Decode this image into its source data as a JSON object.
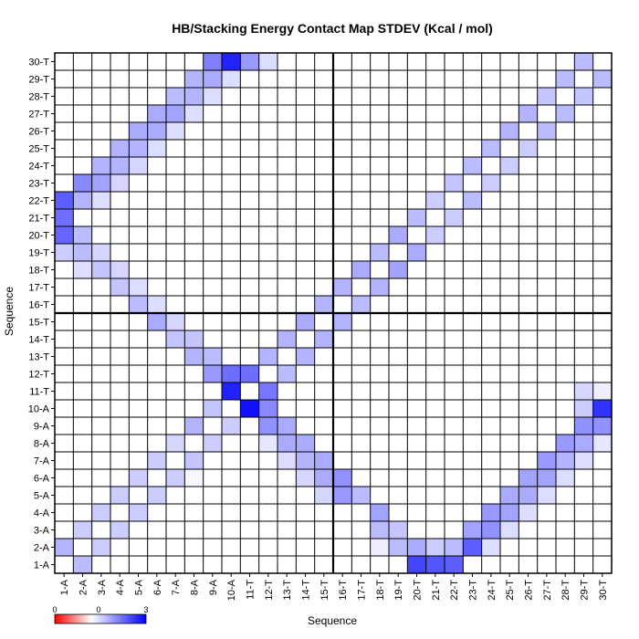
{
  "chart_data": {
    "type": "heatmap",
    "title": "HB/Stacking Energy Contact Map STDEV (Kcal / mol)",
    "xlabel": "Sequence",
    "ylabel": "Sequence",
    "labels": [
      "1-A",
      "2-A",
      "3-A",
      "4-A",
      "5-A",
      "6-A",
      "7-A",
      "8-A",
      "9-A",
      "10-A",
      "11-T",
      "12-T",
      "13-T",
      "14-T",
      "15-T",
      "16-T",
      "17-T",
      "18-T",
      "19-T",
      "20-T",
      "21-T",
      "22-T",
      "23-T",
      "24-T",
      "25-T",
      "26-T",
      "27-T",
      "28-T",
      "29-T",
      "30-T"
    ],
    "strand_break_after": 15,
    "colorbar": {
      "ticks": [
        "0",
        "0",
        "3"
      ],
      "low_color": "#ff0000",
      "mid_color": "#ffffff",
      "high_color": "#0000ff"
    },
    "scale_max": 3,
    "matrix": [
      [
        0,
        0.8,
        0,
        0,
        0,
        0,
        0,
        0,
        0,
        0,
        0,
        0,
        0,
        0,
        0,
        0,
        0,
        0,
        0,
        2.2,
        2.0,
        1.9,
        0,
        0,
        0,
        0,
        0,
        0,
        0,
        0
      ],
      [
        0.9,
        0,
        0.6,
        0,
        0,
        0,
        0,
        0,
        0,
        0,
        0,
        0,
        0,
        0,
        0,
        0,
        0,
        0.2,
        0.8,
        1.0,
        0.6,
        0.8,
        1.9,
        0.4,
        0,
        0,
        0,
        0,
        0,
        0
      ],
      [
        0,
        0.6,
        0,
        0.6,
        0,
        0,
        0,
        0,
        0,
        0,
        0,
        0,
        0,
        0,
        0,
        0,
        0,
        0.8,
        0.7,
        0,
        0,
        0,
        1.1,
        1.3,
        0.4,
        0,
        0,
        0,
        0,
        0
      ],
      [
        0,
        0,
        0.6,
        0,
        0.6,
        0,
        0,
        0,
        0,
        0,
        0,
        0,
        0,
        0,
        0,
        0,
        0,
        1.1,
        0,
        0,
        0,
        0,
        0,
        1.2,
        1.1,
        0.4,
        0,
        0,
        0,
        0
      ],
      [
        0,
        0,
        0,
        0.6,
        0,
        0.6,
        0,
        0,
        0,
        0,
        0,
        0,
        0,
        0,
        0.5,
        1.2,
        0.8,
        0,
        0,
        0,
        0,
        0,
        0,
        0,
        1.0,
        1.0,
        0.4,
        0,
        0,
        0
      ],
      [
        0,
        0,
        0,
        0,
        0.6,
        0,
        0.6,
        0.1,
        0,
        0,
        0,
        0,
        0,
        0.5,
        1.0,
        1.3,
        0,
        0,
        0,
        0,
        0,
        0,
        0,
        0,
        0,
        1.1,
        1.1,
        0.4,
        0,
        0
      ],
      [
        0,
        0,
        0,
        0,
        0,
        0.6,
        0,
        0.7,
        0,
        0,
        0,
        0,
        0.4,
        0.9,
        1.0,
        0,
        0,
        0,
        0,
        0,
        0,
        0,
        0,
        0,
        0,
        0,
        1.2,
        0.9,
        0.4,
        0
      ],
      [
        0,
        0,
        0,
        0,
        0,
        0,
        0.5,
        0,
        0.6,
        0,
        0,
        0.3,
        1.0,
        1.0,
        0,
        0,
        0,
        0,
        0,
        0,
        0,
        0,
        0,
        0,
        0,
        0,
        0,
        1.2,
        1.0,
        0.3
      ],
      [
        0,
        0,
        0,
        0,
        0,
        0,
        0,
        0.9,
        0,
        0.6,
        0,
        1.3,
        1.0,
        0,
        0,
        0,
        0,
        0,
        0,
        0,
        0,
        0,
        0,
        0,
        0,
        0,
        0,
        0,
        1.3,
        1.3
      ],
      [
        0,
        0,
        0,
        0,
        0,
        0,
        0,
        0,
        0.7,
        0,
        2.8,
        1.4,
        0,
        0,
        0,
        0,
        0,
        0,
        0,
        0,
        0,
        0,
        0,
        0,
        0,
        0,
        0,
        0,
        0.6,
        2.4
      ],
      [
        0,
        0,
        0,
        0,
        0,
        0,
        0,
        0,
        0,
        2.6,
        0,
        1.6,
        0,
        0,
        0,
        0,
        0,
        0,
        0,
        0,
        0,
        0,
        0,
        0,
        0,
        0,
        0,
        0,
        0.5,
        0.2
      ],
      [
        0,
        0,
        0,
        0,
        0,
        0,
        0,
        0,
        1.2,
        1.7,
        1.7,
        0,
        0.8,
        0,
        0,
        0,
        0,
        0,
        0,
        0,
        0,
        0,
        0,
        0,
        0,
        0,
        0,
        0,
        0,
        0
      ],
      [
        0,
        0,
        0,
        0,
        0,
        0,
        0,
        0.9,
        0.8,
        0,
        0,
        0.9,
        0,
        0.9,
        0,
        0,
        0,
        0,
        0,
        0,
        0,
        0,
        0,
        0,
        0,
        0,
        0,
        0,
        0,
        0
      ],
      [
        0,
        0,
        0,
        0,
        0,
        0,
        0.7,
        0.7,
        0,
        0,
        0,
        0,
        0.9,
        0,
        0.9,
        0,
        0,
        0,
        0,
        0,
        0,
        0,
        0,
        0,
        0,
        0,
        0,
        0,
        0,
        0
      ],
      [
        0,
        0,
        0,
        0,
        0,
        1.0,
        0.5,
        0,
        0,
        0,
        0,
        0,
        0,
        1.0,
        0,
        0.9,
        0,
        0,
        0,
        0,
        0,
        0,
        0,
        0,
        0,
        0,
        0,
        0,
        0,
        0
      ],
      [
        0,
        0,
        0,
        0,
        0.8,
        0.4,
        0,
        0,
        0,
        0,
        0,
        0,
        0,
        0,
        0.9,
        0,
        0.8,
        0,
        0,
        0,
        0,
        0,
        0,
        0,
        0,
        0,
        0,
        0,
        0,
        0
      ],
      [
        0,
        0,
        0,
        0.7,
        0.4,
        0,
        0,
        0,
        0,
        0,
        0,
        0,
        0,
        0,
        0,
        0.9,
        0,
        0.9,
        0,
        0,
        0,
        0,
        0,
        0,
        0,
        0,
        0,
        0,
        0,
        0
      ],
      [
        0,
        0.4,
        0.7,
        0.5,
        0,
        0,
        0,
        0,
        0,
        0,
        0,
        0,
        0,
        0,
        0,
        0,
        1.0,
        0,
        1.1,
        0,
        0,
        0,
        0,
        0,
        0,
        0,
        0,
        0,
        0,
        0
      ],
      [
        0.6,
        0.8,
        0.5,
        0,
        0,
        0,
        0,
        0,
        0,
        0,
        0,
        0,
        0,
        0,
        0,
        0,
        0,
        0.8,
        0,
        1.0,
        0,
        0,
        0,
        0,
        0,
        0,
        0,
        0,
        0,
        0
      ],
      [
        1.8,
        0.8,
        0,
        0,
        0,
        0,
        0,
        0,
        0,
        0,
        0,
        0,
        0,
        0,
        0,
        0,
        0,
        0,
        1.0,
        0,
        0.6,
        0,
        0,
        0,
        0,
        0,
        0,
        0,
        0,
        0
      ],
      [
        1.7,
        0,
        0,
        0,
        0,
        0,
        0,
        0,
        0,
        0,
        0,
        0,
        0,
        0,
        0,
        0,
        0,
        0,
        0,
        0.8,
        0,
        0.6,
        0,
        0,
        0,
        0,
        0,
        0,
        0,
        0
      ],
      [
        1.9,
        0.9,
        0.4,
        0,
        0,
        0,
        0,
        0,
        0,
        0,
        0,
        0,
        0,
        0,
        0,
        0,
        0,
        0,
        0,
        0,
        0.6,
        0,
        0.8,
        0,
        0,
        0,
        0,
        0,
        0,
        0
      ],
      [
        0,
        1.4,
        1.1,
        0.5,
        0,
        0,
        0,
        0,
        0,
        0,
        0,
        0,
        0,
        0,
        0,
        0,
        0,
        0,
        0,
        0,
        0,
        0.7,
        0,
        0.6,
        0,
        0,
        0,
        0,
        0,
        0
      ],
      [
        0,
        0,
        0.9,
        0.9,
        0.5,
        0,
        0,
        0,
        0,
        0,
        0,
        0,
        0,
        0,
        0,
        0,
        0,
        0,
        0,
        0,
        0,
        0,
        0.8,
        0,
        0.6,
        0,
        0,
        0,
        0,
        0
      ],
      [
        0,
        0,
        0,
        0.9,
        0.9,
        0.4,
        0,
        0,
        0,
        0,
        0,
        0,
        0,
        0,
        0,
        0,
        0,
        0,
        0,
        0,
        0,
        0,
        0,
        0.8,
        0,
        0.6,
        0,
        0,
        0,
        0
      ],
      [
        0,
        0,
        0,
        0,
        1.0,
        1.0,
        0.4,
        0,
        0,
        0,
        0,
        0,
        0,
        0,
        0,
        0,
        0,
        0,
        0,
        0,
        0,
        0,
        0,
        0,
        0.9,
        0,
        0.8,
        0,
        0,
        0
      ],
      [
        0,
        0,
        0,
        0,
        0,
        1.0,
        1.1,
        0.4,
        0,
        0,
        0,
        0,
        0,
        0,
        0,
        0,
        0,
        0,
        0,
        0,
        0,
        0,
        0,
        0,
        0,
        0.9,
        0,
        0.8,
        0,
        0
      ],
      [
        0,
        0,
        0,
        0,
        0,
        0,
        0.8,
        0.9,
        0.4,
        0,
        0,
        0,
        0,
        0,
        0,
        0,
        0,
        0,
        0,
        0,
        0,
        0,
        0,
        0,
        0,
        0,
        0.7,
        0,
        0.7,
        0
      ],
      [
        0,
        0,
        0,
        0,
        0,
        0,
        0,
        0.9,
        1.0,
        0.4,
        0,
        0,
        0,
        0,
        0,
        0,
        0,
        0,
        0,
        0,
        0,
        0,
        0,
        0,
        0,
        0,
        0,
        0.8,
        0,
        0.8
      ],
      [
        0,
        0,
        0,
        0,
        0,
        0,
        0,
        0,
        1.5,
        2.6,
        1.2,
        0.4,
        0,
        0,
        0,
        0,
        0,
        0,
        0,
        0,
        0,
        0,
        0,
        0,
        0,
        0,
        0,
        0,
        0.8,
        0
      ]
    ]
  }
}
